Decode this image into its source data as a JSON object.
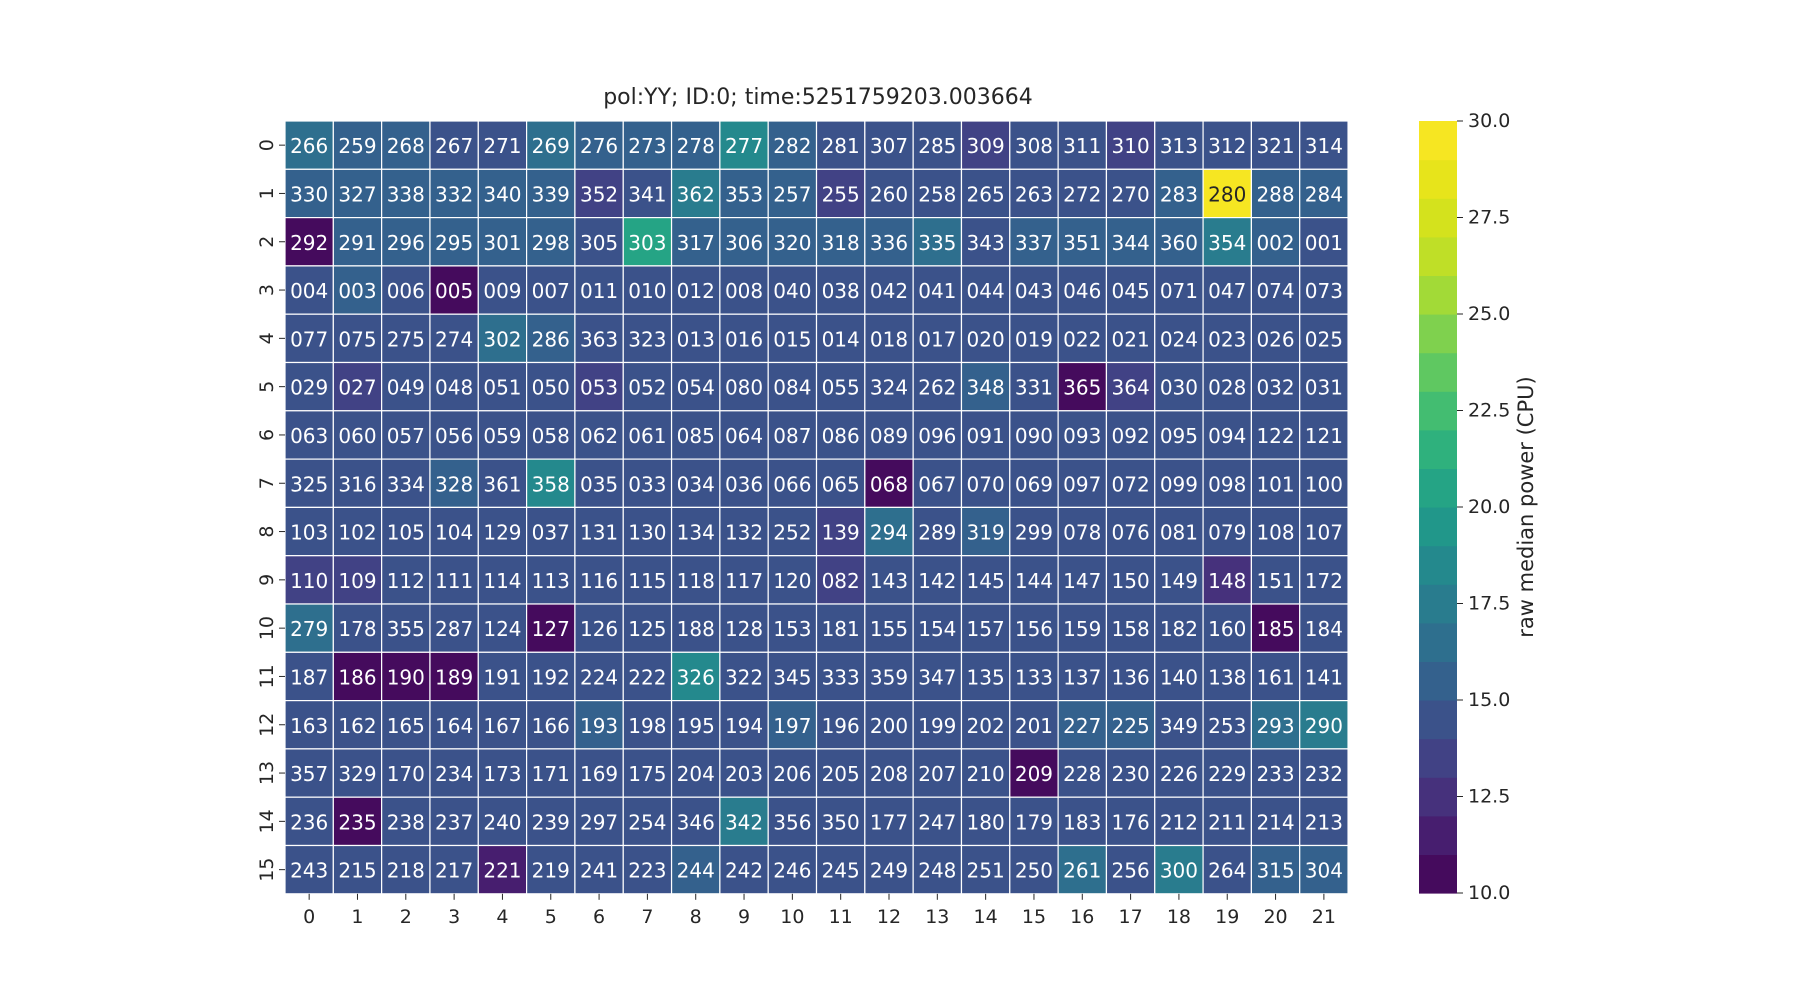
{
  "chart_data": {
    "type": "heatmap",
    "title": "pol:YY; ID:0; time:5251759203.003664",
    "x": [
      "0",
      "1",
      "2",
      "3",
      "4",
      "5",
      "6",
      "7",
      "8",
      "9",
      "10",
      "11",
      "12",
      "13",
      "14",
      "15",
      "16",
      "17",
      "18",
      "19",
      "20",
      "21"
    ],
    "y": [
      "0",
      "1",
      "2",
      "3",
      "4",
      "5",
      "6",
      "7",
      "8",
      "9",
      "10",
      "11",
      "12",
      "13",
      "14",
      "15"
    ],
    "annotations": [
      [
        "266",
        "259",
        "268",
        "267",
        "271",
        "269",
        "276",
        "273",
        "278",
        "277",
        "282",
        "281",
        "307",
        "285",
        "309",
        "308",
        "311",
        "310",
        "313",
        "312",
        "321",
        "314"
      ],
      [
        "330",
        "327",
        "338",
        "332",
        "340",
        "339",
        "352",
        "341",
        "362",
        "353",
        "257",
        "255",
        "260",
        "258",
        "265",
        "263",
        "272",
        "270",
        "283",
        "280",
        "288",
        "284"
      ],
      [
        "292",
        "291",
        "296",
        "295",
        "301",
        "298",
        "305",
        "303",
        "317",
        "306",
        "320",
        "318",
        "336",
        "335",
        "343",
        "337",
        "351",
        "344",
        "360",
        "354",
        "002",
        "001"
      ],
      [
        "004",
        "003",
        "006",
        "005",
        "009",
        "007",
        "011",
        "010",
        "012",
        "008",
        "040",
        "038",
        "042",
        "041",
        "044",
        "043",
        "046",
        "045",
        "071",
        "047",
        "074",
        "073"
      ],
      [
        "077",
        "075",
        "275",
        "274",
        "302",
        "286",
        "363",
        "323",
        "013",
        "016",
        "015",
        "014",
        "018",
        "017",
        "020",
        "019",
        "022",
        "021",
        "024",
        "023",
        "026",
        "025"
      ],
      [
        "029",
        "027",
        "049",
        "048",
        "051",
        "050",
        "053",
        "052",
        "054",
        "080",
        "084",
        "055",
        "324",
        "262",
        "348",
        "331",
        "365",
        "364",
        "030",
        "028",
        "032",
        "031"
      ],
      [
        "063",
        "060",
        "057",
        "056",
        "059",
        "058",
        "062",
        "061",
        "085",
        "064",
        "087",
        "086",
        "089",
        "096",
        "091",
        "090",
        "093",
        "092",
        "095",
        "094",
        "122",
        "121"
      ],
      [
        "325",
        "316",
        "334",
        "328",
        "361",
        "358",
        "035",
        "033",
        "034",
        "036",
        "066",
        "065",
        "068",
        "067",
        "070",
        "069",
        "097",
        "072",
        "099",
        "098",
        "101",
        "100"
      ],
      [
        "103",
        "102",
        "105",
        "104",
        "129",
        "037",
        "131",
        "130",
        "134",
        "132",
        "252",
        "139",
        "294",
        "289",
        "319",
        "299",
        "078",
        "076",
        "081",
        "079",
        "108",
        "107"
      ],
      [
        "110",
        "109",
        "112",
        "111",
        "114",
        "113",
        "116",
        "115",
        "118",
        "117",
        "120",
        "082",
        "143",
        "142",
        "145",
        "144",
        "147",
        "150",
        "149",
        "148",
        "151",
        "172"
      ],
      [
        "279",
        "178",
        "355",
        "287",
        "124",
        "127",
        "126",
        "125",
        "188",
        "128",
        "153",
        "181",
        "155",
        "154",
        "157",
        "156",
        "159",
        "158",
        "182",
        "160",
        "185",
        "184"
      ],
      [
        "187",
        "186",
        "190",
        "189",
        "191",
        "192",
        "224",
        "222",
        "326",
        "322",
        "345",
        "333",
        "359",
        "347",
        "135",
        "133",
        "137",
        "136",
        "140",
        "138",
        "161",
        "141"
      ],
      [
        "163",
        "162",
        "165",
        "164",
        "167",
        "166",
        "193",
        "198",
        "195",
        "194",
        "197",
        "196",
        "200",
        "199",
        "202",
        "201",
        "227",
        "225",
        "349",
        "253",
        "293",
        "290"
      ],
      [
        "357",
        "329",
        "170",
        "234",
        "173",
        "171",
        "169",
        "175",
        "204",
        "203",
        "206",
        "205",
        "208",
        "207",
        "210",
        "209",
        "228",
        "230",
        "226",
        "229",
        "233",
        "232"
      ],
      [
        "236",
        "235",
        "238",
        "237",
        "240",
        "239",
        "297",
        "254",
        "346",
        "342",
        "356",
        "350",
        "177",
        "247",
        "180",
        "179",
        "183",
        "176",
        "212",
        "211",
        "214",
        "213"
      ],
      [
        "243",
        "215",
        "218",
        "217",
        "221",
        "219",
        "241",
        "223",
        "244",
        "242",
        "246",
        "245",
        "249",
        "248",
        "251",
        "250",
        "261",
        "256",
        "300",
        "264",
        "315",
        "304"
      ]
    ],
    "values": [
      [
        16.5,
        15.0,
        15.0,
        14.0,
        14.0,
        16.0,
        15.0,
        15.0,
        15.0,
        18.5,
        15.0,
        14.0,
        14.0,
        14.0,
        13.5,
        14.0,
        14.0,
        13.0,
        14.0,
        14.0,
        14.5,
        14.0
      ],
      [
        15.0,
        15.0,
        15.0,
        15.0,
        15.0,
        15.0,
        13.5,
        14.0,
        17.0,
        15.0,
        15.0,
        13.0,
        14.0,
        14.0,
        14.0,
        14.0,
        14.0,
        14.0,
        15.0,
        30.0,
        15.0,
        15.0
      ],
      [
        10.0,
        15.5,
        15.5,
        15.0,
        15.0,
        15.0,
        14.0,
        20.0,
        15.0,
        15.0,
        15.0,
        15.0,
        15.0,
        16.5,
        14.5,
        15.5,
        15.0,
        15.0,
        15.0,
        17.0,
        15.0,
        14.5
      ],
      [
        14.5,
        15.5,
        14.5,
        10.0,
        14.5,
        14.0,
        14.0,
        14.0,
        14.0,
        14.0,
        14.0,
        14.0,
        14.0,
        14.0,
        14.0,
        14.0,
        14.0,
        14.0,
        14.0,
        14.0,
        14.0,
        14.0
      ],
      [
        14.0,
        14.0,
        14.5,
        14.5,
        16.0,
        15.5,
        14.0,
        14.5,
        14.0,
        14.0,
        14.0,
        14.0,
        14.0,
        14.0,
        14.0,
        14.0,
        14.0,
        14.0,
        14.0,
        14.0,
        14.0,
        14.0
      ],
      [
        14.0,
        13.0,
        14.0,
        14.0,
        14.0,
        14.0,
        13.5,
        14.0,
        14.0,
        14.0,
        14.0,
        14.0,
        14.0,
        14.0,
        15.5,
        14.0,
        10.0,
        13.5,
        14.0,
        14.0,
        14.0,
        14.0
      ],
      [
        14.0,
        14.0,
        14.0,
        14.0,
        14.0,
        14.0,
        14.0,
        14.0,
        14.0,
        14.0,
        14.0,
        14.0,
        14.0,
        14.0,
        14.0,
        14.0,
        14.0,
        14.0,
        14.0,
        14.0,
        14.0,
        14.0
      ],
      [
        14.5,
        14.5,
        14.5,
        15.0,
        14.0,
        18.5,
        14.0,
        14.0,
        14.0,
        14.0,
        14.0,
        14.0,
        10.0,
        14.0,
        14.0,
        14.0,
        14.5,
        14.0,
        14.0,
        14.0,
        14.0,
        14.0
      ],
      [
        14.0,
        14.0,
        14.0,
        14.0,
        14.0,
        14.0,
        14.0,
        14.0,
        14.0,
        14.0,
        14.0,
        13.0,
        16.5,
        14.5,
        15.0,
        14.0,
        14.0,
        14.0,
        14.0,
        14.0,
        14.0,
        14.0
      ],
      [
        13.5,
        13.5,
        14.0,
        14.0,
        14.0,
        14.0,
        14.0,
        14.0,
        14.0,
        14.0,
        14.0,
        13.5,
        14.0,
        14.0,
        14.0,
        14.5,
        14.0,
        14.0,
        14.0,
        12.5,
        14.0,
        14.0
      ],
      [
        16.5,
        14.0,
        14.0,
        14.0,
        14.0,
        10.0,
        14.0,
        14.0,
        14.0,
        14.0,
        14.0,
        14.0,
        14.0,
        14.0,
        14.0,
        14.0,
        14.0,
        14.0,
        14.0,
        14.0,
        10.0,
        14.0
      ],
      [
        14.0,
        10.0,
        10.0,
        10.0,
        14.0,
        14.0,
        14.0,
        14.0,
        18.5,
        14.0,
        14.0,
        14.0,
        14.0,
        14.5,
        14.0,
        14.0,
        14.0,
        14.0,
        14.0,
        14.0,
        14.0,
        14.0
      ],
      [
        14.0,
        14.0,
        14.0,
        14.0,
        14.0,
        14.0,
        15.0,
        14.0,
        14.0,
        14.0,
        15.0,
        14.0,
        14.0,
        14.0,
        14.0,
        14.0,
        15.5,
        15.0,
        14.5,
        14.5,
        16.5,
        17.5
      ],
      [
        14.0,
        14.0,
        14.0,
        14.0,
        14.0,
        14.0,
        14.0,
        14.0,
        14.0,
        14.0,
        14.0,
        14.0,
        14.0,
        14.0,
        14.0,
        10.0,
        14.0,
        14.0,
        14.0,
        14.0,
        14.0,
        14.0
      ],
      [
        14.0,
        10.0,
        14.0,
        14.0,
        14.0,
        14.0,
        14.0,
        14.0,
        14.0,
        17.0,
        14.0,
        14.0,
        14.0,
        14.0,
        14.0,
        14.0,
        14.0,
        14.0,
        14.0,
        14.0,
        14.0,
        14.0
      ],
      [
        14.0,
        14.0,
        14.0,
        14.0,
        11.5,
        14.0,
        14.0,
        14.0,
        15.0,
        14.0,
        14.0,
        14.0,
        14.0,
        14.0,
        14.0,
        14.0,
        16.0,
        14.5,
        17.5,
        14.0,
        15.0,
        15.5
      ]
    ],
    "colorbar": {
      "label": "raw median power (CPU)",
      "range": [
        10.0,
        30.0
      ],
      "ticks": [
        "10.0",
        "12.5",
        "15.0",
        "17.5",
        "20.0",
        "22.5",
        "25.0",
        "27.5",
        "30.0"
      ],
      "colormap": "viridis",
      "levels": 20
    },
    "grid": false,
    "legend": "none"
  }
}
